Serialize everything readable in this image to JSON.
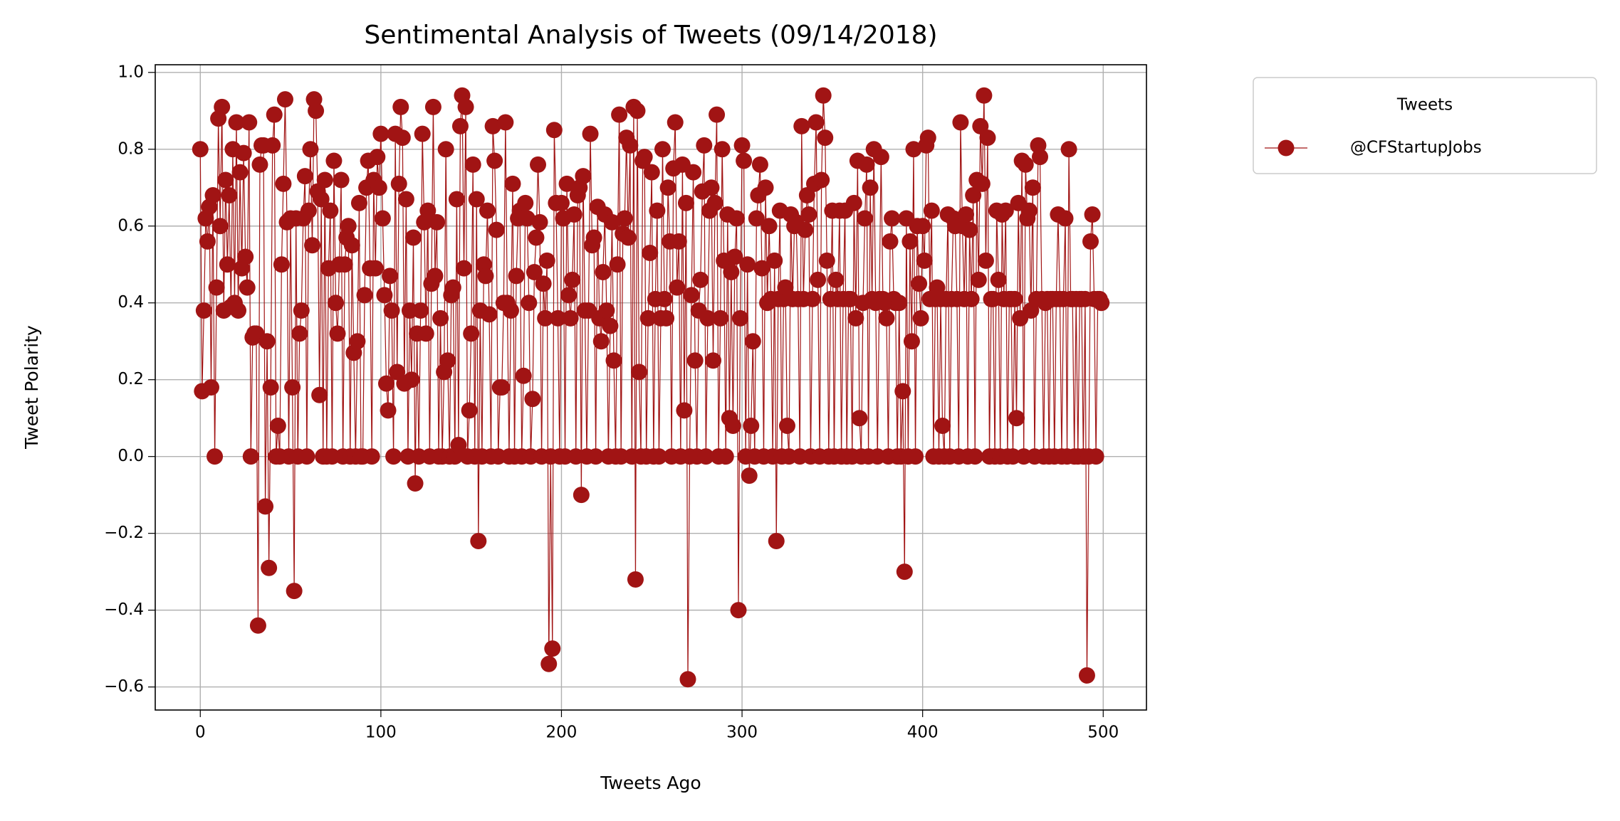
{
  "chart_data": {
    "type": "line",
    "title": "Sentimental Analysis of Tweets (09/14/2018)",
    "x_label": "Tweets Ago",
    "y_label": "Tweet Polarity",
    "legend": {
      "title": "Tweets",
      "position": "outside upper right"
    },
    "grid": true,
    "xlim": [
      -24.95,
      523.95
    ],
    "ylim": [
      -0.66,
      1.02
    ],
    "xticks": [
      0,
      100,
      200,
      300,
      400,
      500
    ],
    "yticks": [
      {
        "value": -0.6,
        "label": "−0.6"
      },
      {
        "value": -0.4,
        "label": "−0.4"
      },
      {
        "value": -0.2,
        "label": "−0.2"
      },
      {
        "value": 0,
        "label": "0.0"
      },
      0.2,
      0.4,
      0.6,
      0.8,
      {
        "value": 1,
        "label": "1.0"
      }
    ],
    "x": [
      0,
      1,
      2,
      3,
      4,
      5,
      6,
      7,
      8,
      9,
      10,
      11,
      12,
      13,
      14,
      15,
      16,
      17,
      18,
      19,
      20,
      21,
      22,
      23,
      24,
      25,
      26,
      27,
      28,
      29,
      30,
      31,
      32,
      33,
      34,
      35,
      36,
      37,
      38,
      39,
      40,
      41,
      42,
      43,
      44,
      45,
      46,
      47,
      48,
      49,
      50,
      51,
      52,
      53,
      54,
      55,
      56,
      57,
      58,
      59,
      60,
      61,
      62,
      63,
      64,
      65,
      66,
      67,
      68,
      69,
      70,
      71,
      72,
      73,
      74,
      75,
      76,
      77,
      78,
      79,
      80,
      81,
      82,
      83,
      84,
      85,
      86,
      87,
      88,
      89,
      90,
      91,
      92,
      93,
      94,
      95,
      96,
      97,
      98,
      99,
      100,
      101,
      102,
      103,
      104,
      105,
      106,
      107,
      108,
      109,
      110,
      111,
      112,
      113,
      114,
      115,
      116,
      117,
      118,
      119,
      120,
      121,
      122,
      123,
      124,
      125,
      126,
      127,
      128,
      129,
      130,
      131,
      132,
      133,
      134,
      135,
      136,
      137,
      138,
      139,
      140,
      141,
      142,
      143,
      144,
      145,
      146,
      147,
      148,
      149,
      150,
      151,
      152,
      153,
      154,
      155,
      156,
      157,
      158,
      159,
      160,
      161,
      162,
      163,
      164,
      165,
      166,
      167,
      168,
      169,
      170,
      171,
      172,
      173,
      174,
      175,
      176,
      177,
      178,
      179,
      180,
      181,
      182,
      183,
      184,
      185,
      186,
      187,
      188,
      189,
      190,
      191,
      192,
      193,
      194,
      195,
      196,
      197,
      198,
      199,
      200,
      201,
      202,
      203,
      204,
      205,
      206,
      207,
      208,
      209,
      210,
      211,
      212,
      213,
      214,
      215,
      216,
      217,
      218,
      219,
      220,
      221,
      222,
      223,
      224,
      225,
      226,
      227,
      228,
      229,
      230,
      231,
      232,
      233,
      234,
      235,
      236,
      237,
      238,
      239,
      240,
      241,
      242,
      243,
      244,
      245,
      246,
      247,
      248,
      249,
      250,
      251,
      252,
      253,
      254,
      255,
      256,
      257,
      258,
      259,
      260,
      261,
      262,
      263,
      264,
      265,
      266,
      267,
      268,
      269,
      270,
      271,
      272,
      273,
      274,
      275,
      276,
      277,
      278,
      279,
      280,
      281,
      282,
      283,
      284,
      285,
      286,
      287,
      288,
      289,
      290,
      291,
      292,
      293,
      294,
      295,
      296,
      297,
      298,
      299,
      300,
      301,
      302,
      303,
      304,
      305,
      306,
      307,
      308,
      309,
      310,
      311,
      312,
      313,
      314,
      315,
      316,
      317,
      318,
      319,
      320,
      321,
      322,
      323,
      324,
      325,
      326,
      327,
      328,
      329,
      330,
      331,
      332,
      333,
      334,
      335,
      336,
      337,
      338,
      339,
      340,
      341,
      342,
      343,
      344,
      345,
      346,
      347,
      348,
      349,
      350,
      351,
      352,
      353,
      354,
      355,
      356,
      357,
      358,
      359,
      360,
      361,
      362,
      363,
      364,
      365,
      366,
      367,
      368,
      369,
      370,
      371,
      372,
      373,
      374,
      375,
      376,
      377,
      378,
      379,
      380,
      381,
      382,
      383,
      384,
      385,
      386,
      387,
      388,
      389,
      390,
      391,
      392,
      393,
      394,
      395,
      396,
      397,
      398,
      399,
      400,
      401,
      402,
      403,
      404,
      405,
      406,
      407,
      408,
      409,
      410,
      411,
      412,
      413,
      414,
      415,
      416,
      417,
      418,
      419,
      420,
      421,
      422,
      423,
      424,
      425,
      426,
      427,
      428,
      429,
      430,
      431,
      432,
      433,
      434,
      435,
      436,
      437,
      438,
      439,
      440,
      441,
      442,
      443,
      444,
      445,
      446,
      447,
      448,
      449,
      450,
      451,
      452,
      453,
      454,
      455,
      456,
      457,
      458,
      459,
      460,
      461,
      462,
      463,
      464,
      465,
      466,
      467,
      468,
      469,
      470,
      471,
      472,
      473,
      474,
      475,
      476,
      477,
      478,
      479,
      480,
      481,
      482,
      483,
      484,
      485,
      486,
      487,
      488,
      489,
      490,
      491,
      492,
      493,
      494,
      495,
      496,
      497,
      498,
      499
    ],
    "series": [
      {
        "name": "@CFStartupJobs",
        "color": "#a11414",
        "values": [
          0.8,
          0.17,
          0.38,
          0.62,
          0.56,
          0.65,
          0.18,
          0.68,
          0,
          0.44,
          0.88,
          0.6,
          0.91,
          0.38,
          0.72,
          0.5,
          0.68,
          0.39,
          0.8,
          0.4,
          0.87,
          0.38,
          0.74,
          0.49,
          0.79,
          0.52,
          0.44,
          0.87,
          0,
          0.31,
          0.32,
          0.32,
          -0.44,
          0.76,
          0.81,
          0.81,
          -0.13,
          0.3,
          -0.29,
          0.18,
          0.81,
          0.89,
          0,
          0.08,
          0,
          0.5,
          0.71,
          0.93,
          0.61,
          0,
          0.62,
          0.18,
          -0.35,
          0.62,
          0,
          0.32,
          0.38,
          0.62,
          0.73,
          0,
          0.64,
          0.8,
          0.55,
          0.93,
          0.9,
          0.69,
          0.16,
          0.67,
          0,
          0.72,
          0,
          0.49,
          0.64,
          0,
          0.77,
          0.4,
          0.32,
          0.5,
          0.72,
          0,
          0.5,
          0.57,
          0.6,
          0,
          0.55,
          0.27,
          0,
          0.3,
          0.66,
          0,
          0,
          0.42,
          0.7,
          0.77,
          0.49,
          0,
          0.72,
          0.49,
          0.78,
          0.7,
          0.84,
          0.62,
          0.42,
          0.19,
          0.12,
          0.47,
          0.38,
          0,
          0.84,
          0.22,
          0.71,
          0.91,
          0.83,
          0.19,
          0.67,
          0,
          0.38,
          0.2,
          0.57,
          -0.07,
          0.32,
          0,
          0.38,
          0.84,
          0.61,
          0.32,
          0.64,
          0,
          0.45,
          0.91,
          0.47,
          0.61,
          0,
          0.36,
          0,
          0.22,
          0.8,
          0.25,
          0,
          0.42,
          0.44,
          0,
          0.67,
          0.03,
          0.86,
          0.94,
          0.49,
          0.91,
          0,
          0.12,
          0.32,
          0.76,
          0,
          0.67,
          -0.22,
          0.38,
          0,
          0.5,
          0.47,
          0.64,
          0.37,
          0,
          0.86,
          0.77,
          0.59,
          0,
          0.18,
          0.18,
          0.4,
          0.87,
          0.4,
          0,
          0.38,
          0.71,
          0,
          0.47,
          0.62,
          0.64,
          0,
          0.21,
          0.66,
          0.62,
          0.4,
          0,
          0.15,
          0.48,
          0.57,
          0.76,
          0.61,
          0,
          0.45,
          0.36,
          0.51,
          -0.54,
          0,
          -0.5,
          0.85,
          0.66,
          0.36,
          0,
          0.66,
          0.62,
          0,
          0.71,
          0.42,
          0.36,
          0.46,
          0.63,
          0,
          0.68,
          0.7,
          -0.1,
          0.73,
          0.38,
          0,
          0.38,
          0.84,
          0.55,
          0.57,
          0,
          0.65,
          0.36,
          0.3,
          0.48,
          0.63,
          0.38,
          0,
          0.34,
          0.61,
          0.25,
          0,
          0.5,
          0.89,
          0,
          0.58,
          0.62,
          0.83,
          0.57,
          0.81,
          0,
          0.91,
          -0.32,
          0.9,
          0.22,
          0,
          0.77,
          0.78,
          0,
          0.36,
          0.53,
          0.74,
          0,
          0.41,
          0.64,
          0,
          0.36,
          0.8,
          0.41,
          0.36,
          0.7,
          0.56,
          0,
          0.75,
          0.87,
          0.44,
          0.56,
          0,
          0.76,
          0.12,
          0.66,
          -0.58,
          0,
          0.42,
          0.74,
          0.25,
          0,
          0.38,
          0.46,
          0.69,
          0.81,
          0,
          0.36,
          0.64,
          0.7,
          0.25,
          0.66,
          0.89,
          0,
          0.36,
          0.8,
          0.51,
          0,
          0.63,
          0.1,
          0.48,
          0.08,
          0.52,
          0.62,
          -0.4,
          0.36,
          0.81,
          0.77,
          0,
          0.5,
          -0.05,
          0.08,
          0.3,
          0,
          0.62,
          0.68,
          0.76,
          0.49,
          0,
          0.7,
          0.4,
          0.6,
          0.41,
          0,
          0.51,
          -0.22,
          0.41,
          0.64,
          0,
          0.41,
          0.44,
          0.08,
          0,
          0.63,
          0.41,
          0.6,
          0.61,
          0.41,
          0,
          0.86,
          0.41,
          0.59,
          0.68,
          0.63,
          0,
          0.41,
          0.71,
          0.87,
          0.46,
          0,
          0.72,
          0.94,
          0.83,
          0.51,
          0,
          0.41,
          0.64,
          0,
          0.46,
          0.41,
          0.64,
          0,
          0.41,
          0.64,
          0,
          0.41,
          0.41,
          0,
          0.66,
          0.36,
          0.77,
          0.1,
          0,
          0.4,
          0.62,
          0.76,
          0,
          0.7,
          0.41,
          0.8,
          0.4,
          0,
          0.41,
          0.78,
          0.41,
          0.4,
          0.36,
          0,
          0.56,
          0.62,
          0.41,
          0.4,
          0,
          0.4,
          0,
          0.17,
          -0.3,
          0.62,
          0,
          0.56,
          0.3,
          0.8,
          0,
          0.6,
          0.45,
          0.36,
          0.6,
          0.51,
          0.81,
          0.83,
          0.41,
          0.64,
          0,
          0.41,
          0.44,
          0,
          0.41,
          0.08,
          0,
          0.41,
          0.63,
          0,
          0.41,
          0.62,
          0.6,
          0.41,
          0,
          0.87,
          0.6,
          0.41,
          0.63,
          0,
          0.59,
          0.41,
          0.68,
          0,
          0.72,
          0.46,
          0.86,
          0.71,
          0.94,
          0.51,
          0.83,
          0,
          0.41,
          0.41,
          0,
          0.64,
          0.46,
          0,
          0.63,
          0.41,
          0.64,
          0,
          0.41,
          0.41,
          0,
          0.41,
          0.1,
          0.66,
          0.36,
          0.77,
          0,
          0.76,
          0.62,
          0.64,
          0.38,
          0.7,
          0,
          0.41,
          0.81,
          0.78,
          0.41,
          0,
          0.4,
          0.41,
          0,
          0.41,
          0.41,
          0,
          0.41,
          0.63,
          0.41,
          0,
          0.41,
          0.62,
          0,
          0.8,
          0.41,
          0.41,
          0,
          0.41,
          0,
          0.41,
          0.41,
          0,
          0.41,
          -0.57,
          0,
          0.56,
          0.63,
          0.41,
          0,
          0.41,
          0.41,
          0.4
        ]
      }
    ]
  }
}
